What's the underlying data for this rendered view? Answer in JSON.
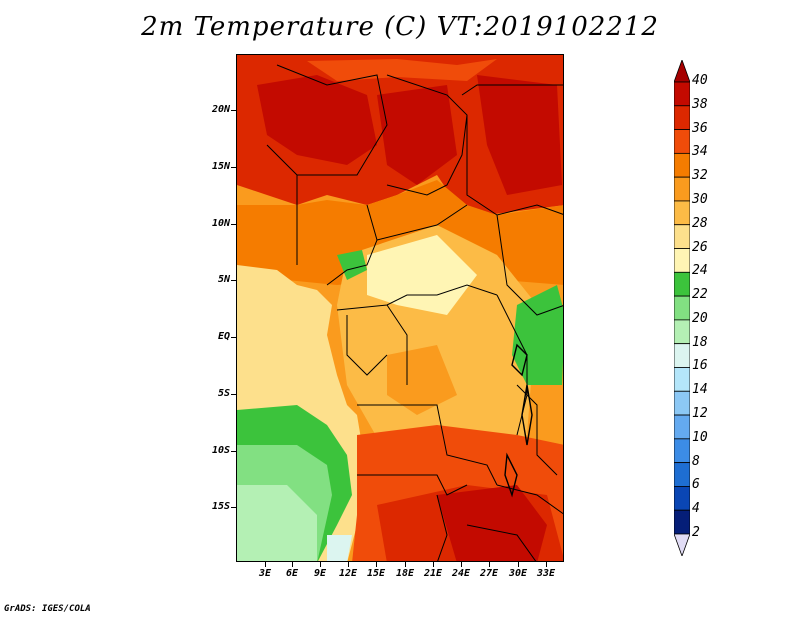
{
  "title": "2m Temperature (C) VT:2019102212",
  "credit": "GrADS: IGES/COLA",
  "lat_labels": [
    "20N",
    "15N",
    "10N",
    "5N",
    "EQ",
    "5S",
    "10S",
    "15S"
  ],
  "lon_labels": [
    "3E",
    "6E",
    "9E",
    "12E",
    "15E",
    "18E",
    "21E",
    "24E",
    "27E",
    "30E",
    "33E"
  ],
  "colorbar": {
    "levels": [
      "40",
      "38",
      "36",
      "34",
      "32",
      "30",
      "28",
      "26",
      "24",
      "22",
      "20",
      "18",
      "16",
      "14",
      "12",
      "10",
      "8",
      "6",
      "4",
      "2"
    ],
    "colors": [
      "#a50000",
      "#c30a00",
      "#dc2800",
      "#f04c0a",
      "#f57c00",
      "#fa9b1e",
      "#fcbb46",
      "#fde08c",
      "#fff5b4",
      "#3cc33c",
      "#82e082",
      "#b4f0b4",
      "#dcf5f0",
      "#b4e6fa",
      "#8cc8f5",
      "#64aaf0",
      "#3c8ce6",
      "#1e6ed2",
      "#0a46b4",
      "#051e78",
      "#e1dcf5"
    ]
  },
  "map_regions": {
    "ocean_colors": [
      "#fde08c",
      "#b4f0b4",
      "#82e082",
      "#3cc33c"
    ],
    "land_colors": [
      "#a50000",
      "#c30a00",
      "#dc2800",
      "#f04c0a",
      "#f57c00",
      "#fa9b1e",
      "#fcbb46",
      "#fff5b4",
      "#3cc33c"
    ]
  }
}
